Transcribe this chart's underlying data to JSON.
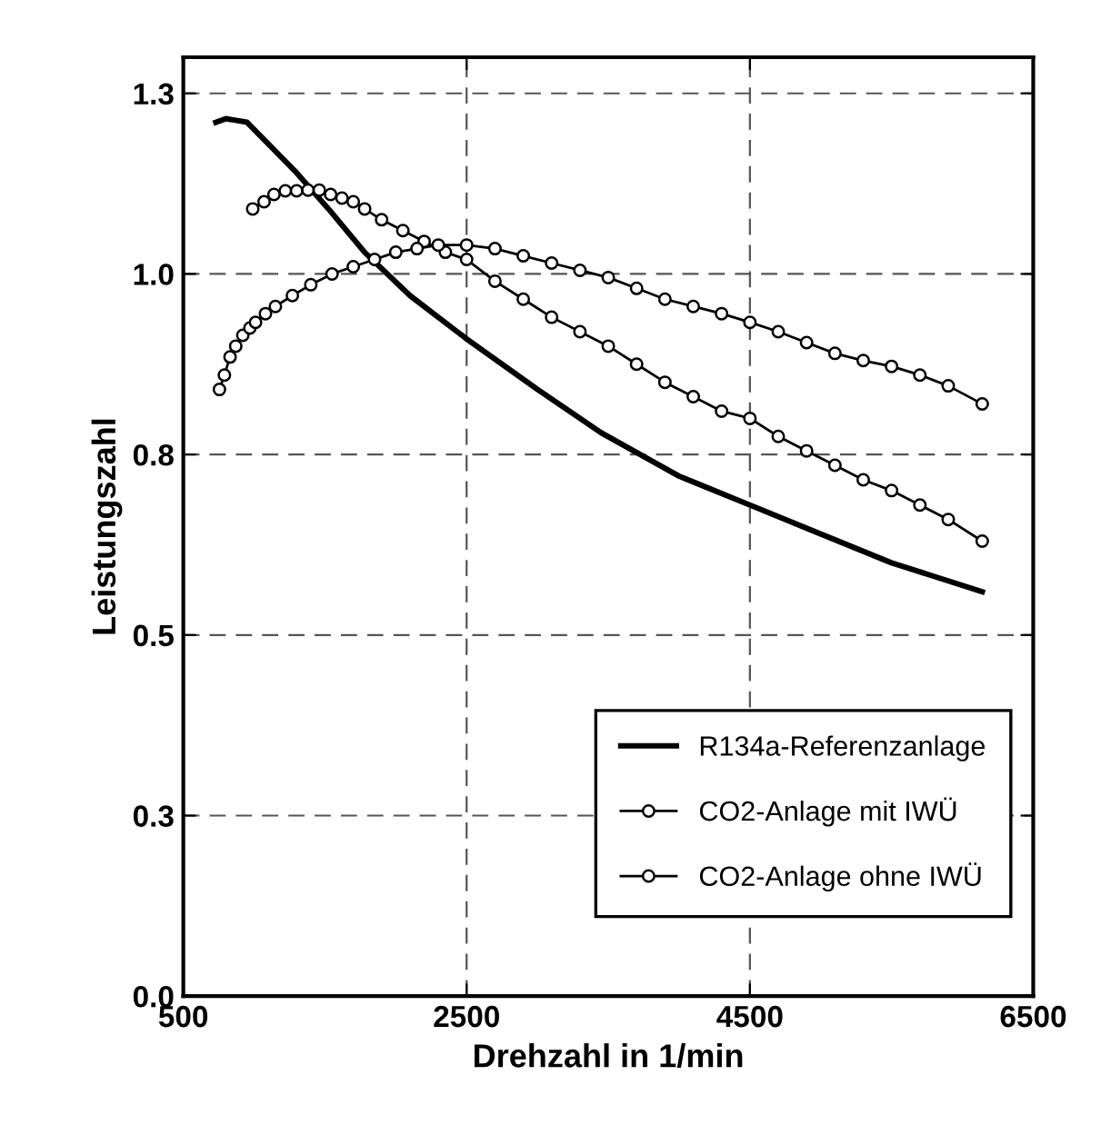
{
  "chart_data": {
    "type": "line",
    "xlabel": "Drehzahl in 1/min",
    "ylabel": "Leistungszahl",
    "xlim": [
      500,
      6500
    ],
    "xticks": [
      500,
      2500,
      4500,
      6500
    ],
    "ylim": [
      0,
      1.3
    ],
    "yticks": [
      {
        "value": 0,
        "label": "0.0"
      },
      {
        "value": 0.25,
        "label": "0.3"
      },
      {
        "value": 0.5,
        "label": "0.5"
      },
      {
        "value": 0.75,
        "label": "0.8"
      },
      {
        "value": 1.0,
        "label": "1.0"
      },
      {
        "value": 1.25,
        "label": "1.3"
      }
    ],
    "grid": true,
    "legend": "bottom right",
    "series": [
      {
        "name": "R134a-Referenzanlage",
        "color": "#000000",
        "marker": "none",
        "x": [
          730,
          800,
          950,
          1100,
          1300,
          1525,
          1780,
          2100,
          2500,
          3000,
          3450,
          4000,
          4500,
          5000,
          5500,
          6140
        ],
        "values": [
          1.21,
          1.215,
          1.21,
          1.18,
          1.14,
          1.09,
          1.03,
          0.97,
          0.91,
          0.84,
          0.78,
          0.72,
          0.68,
          0.64,
          0.6,
          0.56
        ]
      },
      {
        "name": "CO2-Anlage mit IWÜ",
        "color": "#000000",
        "marker": "circle",
        "x": [
          990,
          1070,
          1140,
          1220,
          1300,
          1380,
          1460,
          1540,
          1620,
          1700,
          1780,
          1900,
          2050,
          2200,
          2350,
          2500,
          2700,
          2900,
          3100,
          3300,
          3500,
          3700,
          3900,
          4100,
          4300,
          4500,
          4700,
          4900,
          5100,
          5300,
          5500,
          5700,
          5900,
          6140
        ],
        "values": [
          1.09,
          1.1,
          1.11,
          1.115,
          1.115,
          1.116,
          1.116,
          1.11,
          1.105,
          1.1,
          1.09,
          1.075,
          1.06,
          1.045,
          1.03,
          1.02,
          0.99,
          0.965,
          0.94,
          0.92,
          0.9,
          0.875,
          0.85,
          0.83,
          0.81,
          0.8,
          0.775,
          0.755,
          0.735,
          0.715,
          0.7,
          0.68,
          0.66,
          0.63
        ]
      },
      {
        "name": "CO2-Anlage ohne IWÜ",
        "color": "#000000",
        "marker": "circle",
        "x": [
          755,
          790,
          830,
          870,
          920,
          970,
          1010,
          1080,
          1150,
          1270,
          1400,
          1550,
          1700,
          1850,
          2000,
          2150,
          2300,
          2500,
          2700,
          2900,
          3100,
          3300,
          3500,
          3700,
          3900,
          4100,
          4300,
          4500,
          4700,
          4900,
          5100,
          5300,
          5500,
          5700,
          5900,
          6140
        ],
        "values": [
          0.84,
          0.86,
          0.885,
          0.9,
          0.915,
          0.925,
          0.933,
          0.945,
          0.955,
          0.97,
          0.985,
          1.0,
          1.01,
          1.02,
          1.03,
          1.035,
          1.04,
          1.04,
          1.035,
          1.025,
          1.015,
          1.005,
          0.995,
          0.98,
          0.965,
          0.955,
          0.945,
          0.933,
          0.92,
          0.905,
          0.89,
          0.88,
          0.872,
          0.86,
          0.845,
          0.82
        ]
      }
    ]
  }
}
